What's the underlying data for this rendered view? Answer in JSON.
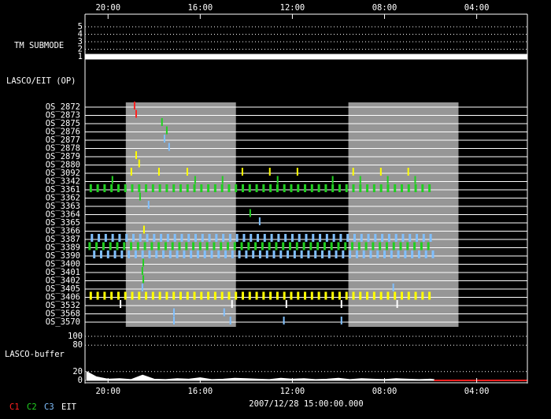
{
  "chart_data": {
    "type": "timeline",
    "xlim": [
      21,
      1.8
    ],
    "xticks": [
      {
        "value": 20,
        "label": "20:00"
      },
      {
        "value": 16,
        "label": "16:00"
      },
      {
        "value": 12,
        "label": "12:00"
      },
      {
        "value": 8,
        "label": "08:00"
      },
      {
        "value": 4,
        "label": "04:00"
      }
    ],
    "date_label": "2007/12/28 15:00:00.000",
    "shaded": [
      [
        19.23,
        14.45
      ],
      [
        9.57,
        4.79
      ]
    ],
    "legend": [
      {
        "name": "C1",
        "color": "#ff2020"
      },
      {
        "name": "C2",
        "color": "#20d020"
      },
      {
        "name": "C3",
        "color": "#80c0ff"
      },
      {
        "name": "EIT",
        "color": "#ffffff"
      }
    ],
    "tm_submode": {
      "label": "TM SUBMODE",
      "ylim": [
        1,
        5
      ],
      "yticks": [
        5,
        4,
        3,
        2,
        1
      ],
      "x": [
        21,
        1.8
      ],
      "values": [
        1,
        1
      ],
      "color": "#ffffff"
    },
    "operations": {
      "label": "LASCO/EIT (OP)",
      "rows": [
        {
          "name": "OS_2872",
          "color": "#ff2020",
          "x": [
            18.85
          ]
        },
        {
          "name": "OS_2873",
          "color": "#ff2020",
          "x": [
            18.78
          ]
        },
        {
          "name": "OS_2875",
          "color": "#20d020",
          "x": [
            17.66
          ]
        },
        {
          "name": "OS_2876",
          "color": "#20d020",
          "x": [
            17.45
          ]
        },
        {
          "name": "OS_2877",
          "color": "#80c0ff",
          "x": [
            17.55
          ]
        },
        {
          "name": "OS_2878",
          "color": "#80c0ff",
          "x": [
            17.35
          ]
        },
        {
          "name": "OS_2879",
          "color": "#ffff00",
          "x": [
            18.78
          ]
        },
        {
          "name": "OS_2880",
          "color": "#ffff00",
          "x": [
            18.65
          ]
        },
        {
          "name": "OS_3092",
          "color": "#ffff00",
          "x": [
            18.99,
            17.79,
            16.56,
            14.17,
            12.98,
            11.78,
            9.36,
            8.16,
            6.97
          ]
        },
        {
          "name": "OS_3342",
          "color": "#20d020",
          "x": [
            19.81,
            16.22,
            15.03,
            12.64,
            10.25,
            9.05,
            7.86,
            6.67
          ]
        },
        {
          "name": "OS_3361",
          "color": "#20d020",
          "x": [
            20.75,
            20.45,
            20.15,
            19.85,
            19.55,
            19.25,
            18.95,
            18.65,
            18.35,
            18.05,
            17.75,
            17.45,
            17.15,
            16.85,
            16.55,
            16.25,
            15.95,
            15.65,
            15.35,
            15.05,
            14.75,
            14.45,
            14.15,
            13.85,
            13.55,
            13.25,
            12.95,
            12.65,
            12.35,
            12.05,
            11.75,
            11.45,
            11.15,
            10.85,
            10.55,
            10.25,
            9.95,
            9.65,
            9.35,
            9.05,
            8.75,
            8.45,
            8.15,
            7.85,
            7.55,
            7.25,
            6.95,
            6.65,
            6.35,
            6.05
          ]
        },
        {
          "name": "OS_3362",
          "color": "#20d020",
          "x": [
            18.61
          ]
        },
        {
          "name": "OS_3363",
          "color": "#80c0ff",
          "x": [
            18.24
          ]
        },
        {
          "name": "OS_3364",
          "color": "#20d020",
          "x": [
            13.83
          ]
        },
        {
          "name": "OS_3365",
          "color": "#80c0ff",
          "x": [
            13.42
          ]
        },
        {
          "name": "OS_3366",
          "color": "#ffff00",
          "x": [
            18.44
          ]
        },
        {
          "name": "OS_3387",
          "color": "#80c0ff",
          "x": [
            20.7,
            20.4,
            20.1,
            19.8,
            19.5,
            19.2,
            18.9,
            18.6,
            18.3,
            18,
            17.7,
            17.4,
            17.1,
            16.8,
            16.5,
            16.2,
            15.9,
            15.6,
            15.3,
            15,
            14.7,
            14.4,
            14.1,
            13.8,
            13.5,
            13.2,
            12.9,
            12.6,
            12.3,
            12,
            11.7,
            11.4,
            11.1,
            10.8,
            10.5,
            10.2,
            9.9,
            9.6,
            9.3,
            9,
            8.7,
            8.4,
            8.1,
            7.8,
            7.5,
            7.2,
            6.9,
            6.6,
            6.3,
            6
          ]
        },
        {
          "name": "OS_3389",
          "color": "#20d020",
          "x": [
            20.8,
            20.5,
            20.2,
            19.9,
            19.6,
            19.3,
            19,
            18.7,
            18.4,
            18.1,
            17.8,
            17.5,
            17.2,
            16.9,
            16.6,
            16.3,
            16,
            15.7,
            15.4,
            15.1,
            14.8,
            14.5,
            14.2,
            13.9,
            13.6,
            13.3,
            13,
            12.7,
            12.4,
            12.1,
            11.8,
            11.5,
            11.2,
            10.9,
            10.6,
            10.3,
            10,
            9.7,
            9.4,
            9.1,
            8.8,
            8.5,
            8.2,
            7.9,
            7.6,
            7.3,
            7,
            6.7,
            6.4,
            6.1
          ]
        },
        {
          "name": "OS_3390",
          "color": "#80c0ff",
          "x": [
            20.6,
            20.3,
            20,
            19.7,
            19.4,
            19.1,
            18.8,
            18.5,
            18.2,
            17.9,
            17.6,
            17.3,
            17,
            16.7,
            16.4,
            16.1,
            15.8,
            15.5,
            15.2,
            14.9,
            14.6,
            14.3,
            14,
            13.7,
            13.4,
            13.1,
            12.8,
            12.5,
            12.2,
            11.9,
            11.6,
            11.3,
            11,
            10.7,
            10.4,
            10.1,
            9.8,
            9.5,
            9.2,
            8.9,
            8.6,
            8.3,
            8,
            7.7,
            7.4,
            7.1,
            6.8,
            6.5,
            6.2,
            5.9
          ]
        },
        {
          "name": "OS_3400",
          "color": "#20d020",
          "x": [
            18.47
          ]
        },
        {
          "name": "OS_3401",
          "color": "#20d020",
          "x": [
            18.51
          ]
        },
        {
          "name": "OS_3402",
          "color": "#20d020",
          "x": [
            18.47
          ]
        },
        {
          "name": "OS_3405",
          "color": "#80c0ff",
          "x": [
            18.51,
            7.62
          ]
        },
        {
          "name": "OS_3406",
          "color": "#ffff00",
          "x": [
            20.75,
            20.45,
            20.15,
            19.85,
            19.55,
            19.25,
            18.95,
            18.65,
            18.35,
            18.05,
            17.75,
            17.45,
            17.15,
            16.85,
            16.55,
            16.25,
            15.95,
            15.65,
            15.35,
            15.05,
            14.75,
            14.45,
            14.15,
            13.85,
            13.55,
            13.25,
            12.95,
            12.65,
            12.35,
            12.05,
            11.75,
            11.45,
            11.15,
            10.85,
            10.55,
            10.25,
            9.95,
            9.65,
            9.35,
            9.05,
            8.75,
            8.45,
            8.15,
            7.85,
            7.55,
            7.25,
            6.95,
            6.65,
            6.35,
            6.05
          ]
        },
        {
          "name": "OS_3532",
          "color": "#ffffff",
          "x": [
            19.46,
            14.62,
            12.26,
            9.87,
            7.45
          ]
        },
        {
          "name": "OS_3568",
          "color": "#80c0ff",
          "x": [
            17.14,
            14.96
          ]
        },
        {
          "name": "OS_3570",
          "color": "#80c0ff",
          "x": [
            17.14,
            14.69,
            12.37,
            9.87
          ]
        }
      ]
    },
    "buffer": {
      "label": "LASCO-buffer",
      "ylim": [
        0,
        100
      ],
      "yticks": [
        100,
        80,
        20,
        0
      ],
      "series": [
        {
          "color": "#ffffff",
          "x": [
            20.93,
            20.5,
            20,
            19.5,
            19,
            18.5,
            18,
            17.5,
            17,
            16.5,
            16,
            15.5,
            15,
            14.5,
            14,
            13.5,
            13,
            12.5,
            12,
            11.5,
            11,
            10.5,
            10,
            9.5,
            9,
            8.5,
            8,
            7.5,
            7,
            6.5,
            6,
            5.85
          ],
          "values": [
            20,
            8,
            3,
            4,
            2,
            12,
            3,
            2,
            4,
            3,
            6,
            2,
            3,
            5,
            4,
            3,
            2,
            5,
            3,
            4,
            2,
            3,
            5,
            2,
            4,
            3,
            2,
            4,
            3,
            2,
            3,
            2
          ]
        },
        {
          "color": "#ff2020",
          "x": [
            5.85,
            1.8
          ],
          "values": [
            0,
            0
          ]
        }
      ]
    }
  }
}
